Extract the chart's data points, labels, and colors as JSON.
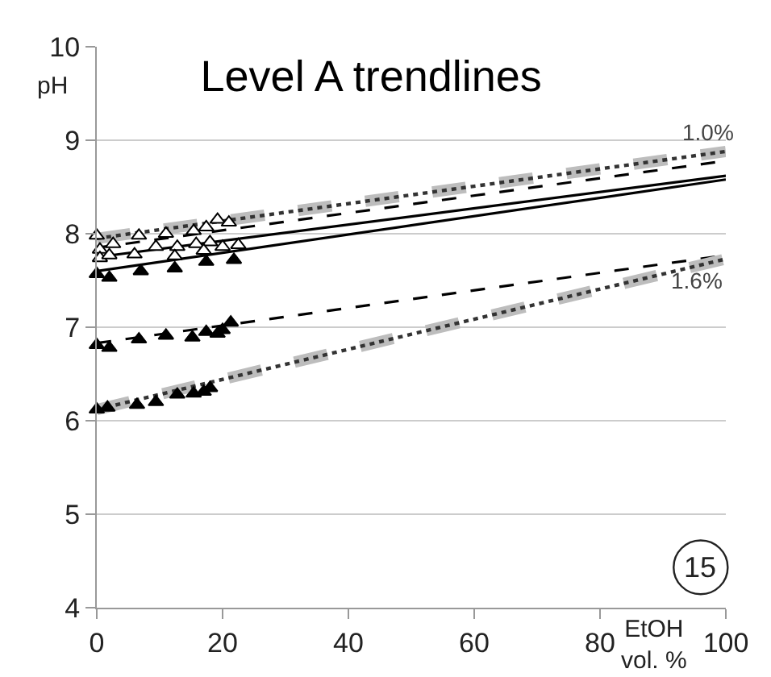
{
  "chart_data": {
    "type": "scatter",
    "title": "Level A trendlines",
    "xlabel": "EtOH vol. %",
    "ylabel": "pH",
    "xlim": [
      0,
      100
    ],
    "xticks": [
      0,
      20,
      40,
      60,
      80,
      100
    ],
    "ylim": [
      4,
      10
    ],
    "yticks": [
      4,
      5,
      6,
      7,
      8,
      9,
      10
    ],
    "grid": "y",
    "marker": "triangle",
    "series": [
      {
        "type": "line",
        "x": [
          0,
          100
        ],
        "values": [
          7.95,
          8.88
        ],
        "color": "#bdbdbd",
        "line_style": "dashed",
        "marker": "none"
      },
      {
        "type": "line",
        "x": [
          0,
          100
        ],
        "values": [
          7.95,
          8.88
        ],
        "color": "#333333",
        "line_style": "dotted",
        "marker": "none"
      },
      {
        "type": "line",
        "x": [
          0,
          100
        ],
        "values": [
          7.85,
          8.78
        ],
        "color": "#000000",
        "line_style": "dashed",
        "marker": "none"
      },
      {
        "type": "line",
        "x": [
          0,
          100
        ],
        "values": [
          7.75,
          8.62
        ],
        "color": "#000000",
        "line_style": "solid",
        "marker": "none"
      },
      {
        "type": "line",
        "x": [
          0,
          100
        ],
        "values": [
          7.6,
          8.58
        ],
        "color": "#000000",
        "line_style": "solid",
        "marker": "none"
      },
      {
        "type": "line",
        "x": [
          0,
          100
        ],
        "values": [
          6.83,
          7.77
        ],
        "color": "#000000",
        "line_style": "dashed",
        "marker": "none"
      },
      {
        "type": "line",
        "x": [
          0,
          100
        ],
        "values": [
          6.12,
          7.73
        ],
        "color": "#bdbdbd",
        "line_style": "dashed",
        "marker": "none"
      },
      {
        "type": "line",
        "x": [
          0,
          100
        ],
        "values": [
          6.12,
          7.73
        ],
        "color": "#333333",
        "line_style": "dotted",
        "marker": "none"
      },
      {
        "x": [
          0,
          6.7,
          11,
          15.4,
          17.4,
          19.2,
          21
        ],
        "values": [
          7.98,
          7.98,
          8.0,
          8.03,
          8.07,
          8.15,
          8.12
        ],
        "color": "#ffffff"
      },
      {
        "x": [
          0.5,
          2.6,
          9.4,
          12.8,
          15.8,
          18
        ],
        "values": [
          7.83,
          7.89,
          7.86,
          7.86,
          7.89,
          7.91
        ],
        "color": "#ffffff"
      },
      {
        "x": [
          0.5,
          2,
          6,
          12.4,
          17,
          20,
          22.5
        ],
        "values": [
          7.74,
          7.77,
          7.78,
          7.76,
          7.82,
          7.86,
          7.88
        ],
        "color": "#ffffff"
      },
      {
        "x": [
          0,
          2,
          7,
          12.4,
          17.4,
          21.8
        ],
        "values": [
          7.57,
          7.53,
          7.6,
          7.63,
          7.7,
          7.72
        ],
        "color": "#000000"
      },
      {
        "x": [
          0,
          2,
          6.7,
          11,
          15.2,
          17.4,
          19.2,
          20,
          21.3
        ],
        "values": [
          6.81,
          6.78,
          6.87,
          6.91,
          6.89,
          6.95,
          6.93,
          6.97,
          7.05
        ],
        "color": "#000000"
      },
      {
        "x": [
          0,
          1.7,
          6.4,
          9.4,
          12.8,
          15.4,
          17,
          18
        ],
        "values": [
          6.12,
          6.14,
          6.17,
          6.2,
          6.28,
          6.29,
          6.31,
          6.35
        ],
        "color": "#000000"
      }
    ],
    "annotations": [
      "1.0%",
      "1.6%",
      "15"
    ]
  }
}
